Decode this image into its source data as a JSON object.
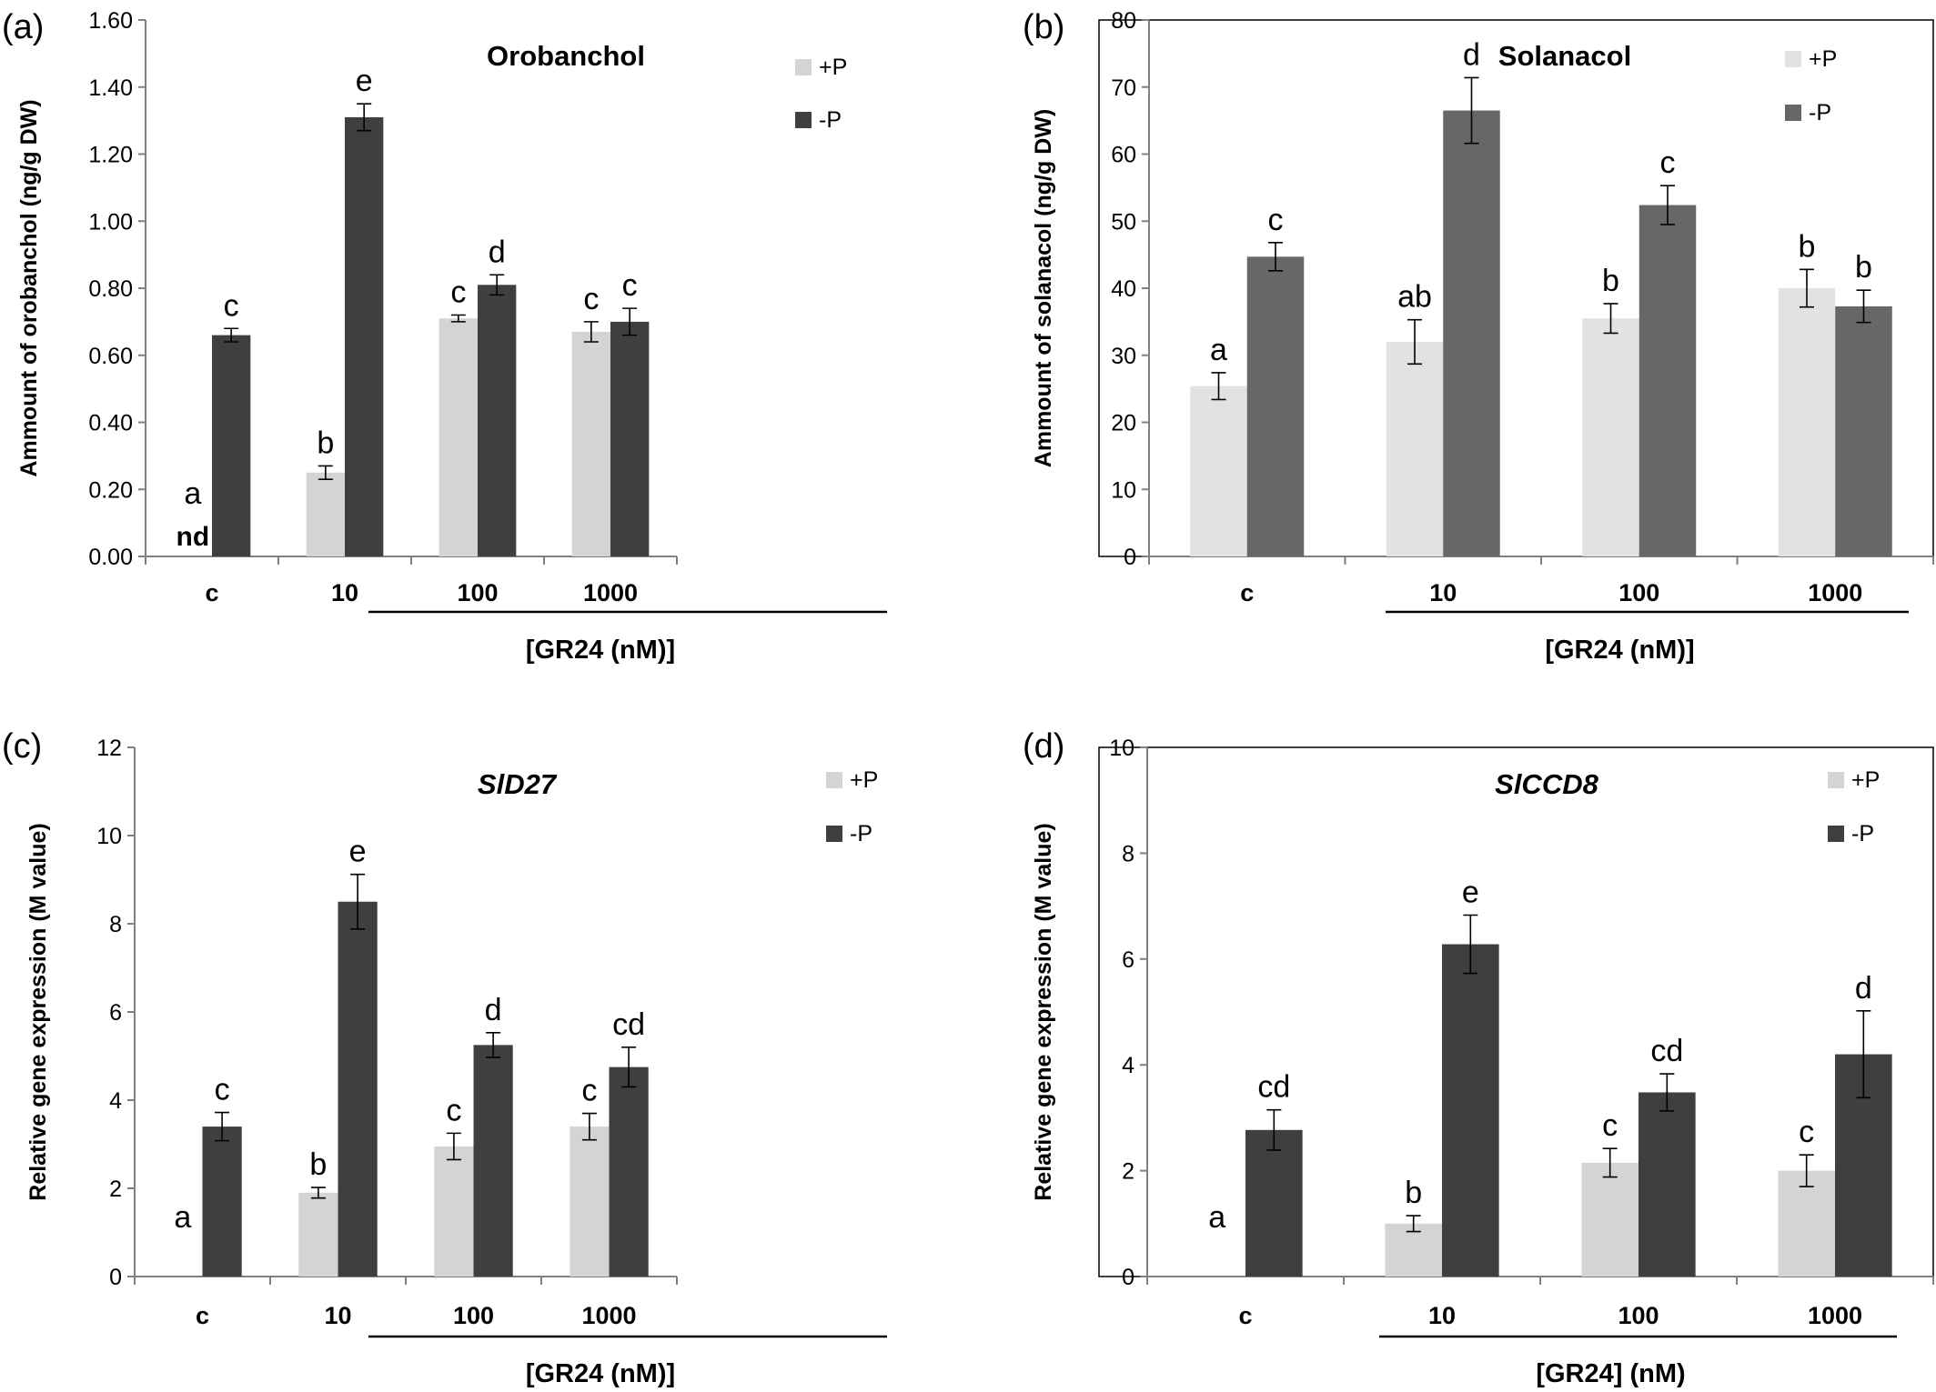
{
  "chart_data": [
    {
      "type": "bar",
      "panel_label": "(a)",
      "title": "Orobanchol",
      "title_italic": false,
      "ylabel": "Ammount of orobanchol (ng/g DW)",
      "xlabel": "[GR24 (nM)]",
      "categories": [
        "c",
        "10",
        "100",
        "1000"
      ],
      "ylim": [
        0,
        1.6
      ],
      "yticks": [
        "0.00",
        "0.20",
        "0.40",
        "0.60",
        "0.80",
        "1.00",
        "1.20",
        "1.40",
        "1.60"
      ],
      "legend_position": "top-right",
      "series": [
        {
          "name": "+P",
          "color": "#d4d4d4",
          "values": [
            0,
            0.25,
            0.71,
            0.67
          ],
          "errors": [
            0,
            0.02,
            0.01,
            0.03
          ],
          "letters": [
            "a",
            "b",
            "c",
            "c"
          ]
        },
        {
          "name": "-P",
          "color": "#3f3f3f",
          "values": [
            0.66,
            1.31,
            0.81,
            0.7
          ],
          "errors": [
            0.02,
            0.04,
            0.03,
            0.04
          ],
          "letters": [
            "c",
            "e",
            "d",
            "c"
          ]
        }
      ],
      "annotation": "nd"
    },
    {
      "type": "bar",
      "panel_label": "(b)",
      "title": "Solanacol",
      "title_italic": false,
      "ylabel": "Ammount of solanacol (ng/g DW)",
      "xlabel": "[GR24 (nM)]",
      "categories": [
        "c",
        "10",
        "100",
        "1000"
      ],
      "ylim": [
        0,
        80
      ],
      "yticks": [
        "0",
        "10",
        "20",
        "30",
        "40",
        "50",
        "60",
        "70",
        "80"
      ],
      "legend_position": "top-right",
      "series": [
        {
          "name": "+P",
          "color": "#e2e2e2",
          "values": [
            25.4,
            32.0,
            35.5,
            40.0
          ],
          "errors": [
            2.0,
            3.3,
            2.2,
            2.8
          ],
          "letters": [
            "a",
            "ab",
            "b",
            "b"
          ]
        },
        {
          "name": "-P",
          "color": "#676767",
          "values": [
            44.7,
            66.5,
            52.4,
            37.3
          ],
          "errors": [
            2.1,
            4.9,
            2.9,
            2.4
          ],
          "letters": [
            "c",
            "d",
            "c",
            "b"
          ]
        }
      ]
    },
    {
      "type": "bar",
      "panel_label": "(c)",
      "title": "SlD27",
      "title_italic": true,
      "ylabel": "Relative gene expression (M value)",
      "xlabel": "[GR24 (nM)]",
      "categories": [
        "c",
        "10",
        "100",
        "1000"
      ],
      "ylim": [
        0,
        12
      ],
      "yticks": [
        "0",
        "2",
        "4",
        "6",
        "8",
        "10",
        "12"
      ],
      "legend_position": "top-right",
      "series": [
        {
          "name": "+P",
          "color": "#d4d4d4",
          "values": [
            0,
            1.9,
            2.95,
            3.4
          ],
          "errors": [
            0,
            0.12,
            0.3,
            0.3
          ],
          "letters": [
            "a",
            "b",
            "c",
            "c"
          ]
        },
        {
          "name": "-P",
          "color": "#3f3f3f",
          "values": [
            3.4,
            8.5,
            5.25,
            4.75
          ],
          "errors": [
            0.32,
            0.62,
            0.28,
            0.45
          ],
          "letters": [
            "c",
            "e",
            "d",
            "cd"
          ]
        }
      ]
    },
    {
      "type": "bar",
      "panel_label": "(d)",
      "title": "SlCCD8",
      "title_italic": true,
      "ylabel": "Relative gene expression (M value)",
      "xlabel": "[GR24] (nM)",
      "categories": [
        "c",
        "10",
        "100",
        "1000"
      ],
      "ylim": [
        0,
        10
      ],
      "yticks": [
        "0",
        "2",
        "4",
        "6",
        "8",
        "10"
      ],
      "legend_position": "top-right",
      "series": [
        {
          "name": "+P",
          "color": "#d4d4d4",
          "values": [
            0,
            1.0,
            2.15,
            2.0
          ],
          "errors": [
            0,
            0.15,
            0.27,
            0.3
          ],
          "letters": [
            "a",
            "b",
            "c",
            "c"
          ]
        },
        {
          "name": "-P",
          "color": "#3f3f3f",
          "values": [
            2.77,
            6.28,
            3.48,
            4.2
          ],
          "errors": [
            0.38,
            0.55,
            0.35,
            0.82
          ],
          "letters": [
            "cd",
            "e",
            "cd",
            "d"
          ]
        }
      ]
    }
  ]
}
